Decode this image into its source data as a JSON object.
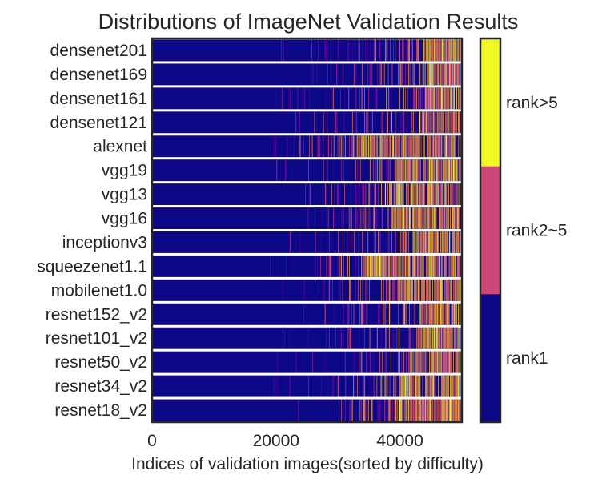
{
  "chart_data": {
    "type": "heatmap",
    "title": "Distributions of ImageNet Validation Results",
    "xlabel": "Indices of validation images(sorted by difficulty)",
    "ylabel": "",
    "xlim": [
      0,
      50000
    ],
    "x_ticks": [
      0,
      20000,
      40000
    ],
    "x_tick_labels": [
      "0",
      "20000",
      "40000"
    ],
    "categories": [
      "densenet201",
      "densenet169",
      "densenet161",
      "densenet121",
      "alexnet",
      "vgg19",
      "vgg13",
      "vgg16",
      "inceptionv3",
      "squeezenet1.1",
      "mobilenet1.0",
      "resnet152_v2",
      "resnet101_v2",
      "resnet50_v2",
      "resnet34_v2",
      "resnet18_v2"
    ],
    "colorbar": {
      "labels": [
        "rank>5",
        "rank2~5",
        "rank1"
      ],
      "colors": {
        "rank>5": "#f0f921",
        "rank2~5": "#cc4778",
        "rank1": "#0d0887"
      }
    },
    "series": [
      {
        "name": "densenet201",
        "rank1_until": 19500,
        "mixed_start": 19500,
        "mostly_wrong_start": 43500
      },
      {
        "name": "densenet169",
        "rank1_until": 19500,
        "mixed_start": 19500,
        "mostly_wrong_start": 43800
      },
      {
        "name": "densenet161",
        "rank1_until": 20000,
        "mixed_start": 20000,
        "mostly_wrong_start": 44000
      },
      {
        "name": "densenet121",
        "rank1_until": 19500,
        "mixed_start": 19500,
        "mostly_wrong_start": 43000
      },
      {
        "name": "alexnet",
        "rank1_until": 19000,
        "mixed_start": 19000,
        "mostly_wrong_start": 33000
      },
      {
        "name": "vgg19",
        "rank1_until": 19500,
        "mixed_start": 19500,
        "mostly_wrong_start": 39000
      },
      {
        "name": "vgg13",
        "rank1_until": 19500,
        "mixed_start": 19500,
        "mostly_wrong_start": 38000
      },
      {
        "name": "vgg16",
        "rank1_until": 19500,
        "mixed_start": 19500,
        "mostly_wrong_start": 38500
      },
      {
        "name": "inceptionv3",
        "rank1_until": 19500,
        "mixed_start": 19500,
        "mostly_wrong_start": 42000
      },
      {
        "name": "squeezenet1.1",
        "rank1_until": 19000,
        "mixed_start": 19000,
        "mostly_wrong_start": 34000
      },
      {
        "name": "mobilenet1.0",
        "rank1_until": 19500,
        "mixed_start": 19500,
        "mostly_wrong_start": 39500
      },
      {
        "name": "resnet152_v2",
        "rank1_until": 19500,
        "mixed_start": 19500,
        "mostly_wrong_start": 43000
      },
      {
        "name": "resnet101_v2",
        "rank1_until": 19500,
        "mixed_start": 19500,
        "mostly_wrong_start": 42500
      },
      {
        "name": "resnet50_v2",
        "rank1_until": 19500,
        "mixed_start": 19500,
        "mostly_wrong_start": 41500
      },
      {
        "name": "resnet34_v2",
        "rank1_until": 19500,
        "mixed_start": 19500,
        "mostly_wrong_start": 40000
      },
      {
        "name": "resnet18_v2",
        "rank1_until": 19500,
        "mixed_start": 19500,
        "mostly_wrong_start": 39000
      }
    ]
  }
}
